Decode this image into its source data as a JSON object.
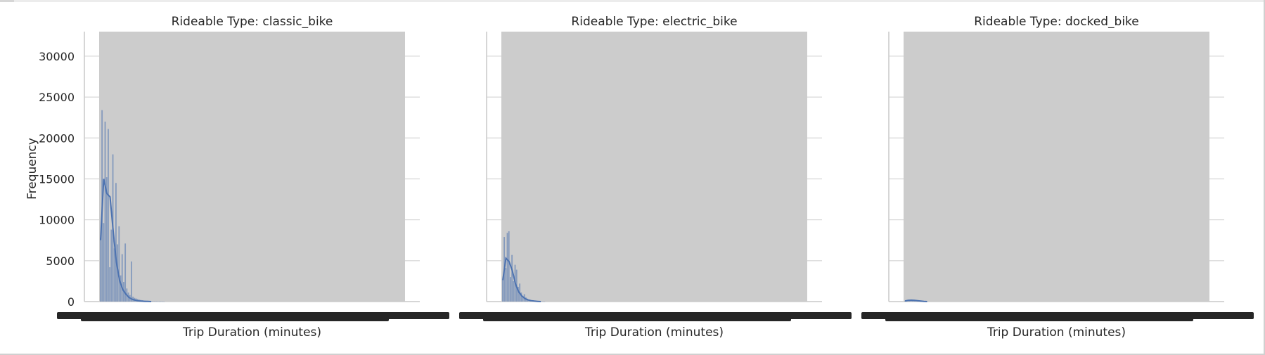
{
  "chart_data": {
    "type": "bar",
    "layout": "facet-grid-1x3",
    "shared_y": true,
    "ylabel": "Frequency",
    "xlabel": "Trip Duration (minutes)",
    "yticks": [
      0,
      5000,
      10000,
      15000,
      20000,
      25000,
      30000
    ],
    "ylim": [
      0,
      33000
    ],
    "grid": true,
    "colors": {
      "bars": "#4c72b0",
      "kde": "#4c72b0",
      "dense_fill": "#cccccc",
      "ticklabel_overlap": "#262626"
    },
    "panels": [
      {
        "title": "Rideable Type: classic_bike",
        "bars": [
          7800,
          23400,
          9600,
          22000,
          15200,
          21100,
          4200,
          8800,
          18000,
          6500,
          14500,
          7000,
          9200,
          3200,
          5800,
          2400,
          7100,
          1600,
          1100,
          800,
          4900,
          600,
          450,
          380,
          300,
          240,
          200,
          170,
          140,
          120,
          100,
          80,
          70,
          55,
          45,
          35,
          28,
          22,
          18,
          14,
          10,
          8
        ],
        "kde": [
          7500,
          15000,
          13200,
          12800,
          8600,
          4800,
          2600,
          1500,
          900,
          500,
          280,
          160,
          90,
          50,
          30,
          15,
          0
        ]
      },
      {
        "title": "Rideable Type: electric_bike",
        "bars": [
          2600,
          7900,
          4100,
          8400,
          8600,
          3000,
          5700,
          2500,
          4500,
          3900,
          1800,
          2200,
          1100,
          700,
          900,
          500,
          350,
          250,
          180,
          130,
          90,
          70,
          50,
          35,
          25,
          18,
          12,
          8
        ],
        "kde": [
          2600,
          5300,
          4900,
          3800,
          2200,
          1200,
          700,
          380,
          200,
          110,
          60,
          30,
          0
        ]
      },
      {
        "title": "Rideable Type: docked_bike",
        "bars": [
          60,
          110,
          150,
          170,
          160,
          140,
          120,
          90,
          60,
          40,
          25,
          15
        ],
        "kde": [
          80,
          150,
          170,
          150,
          110,
          70,
          30,
          0
        ]
      }
    ]
  }
}
